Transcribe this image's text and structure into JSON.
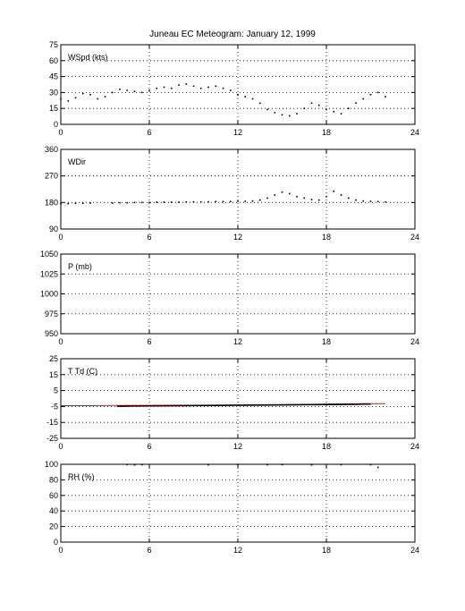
{
  "title": "Juneau EC Meteogram:   January 12, 1999",
  "chart_data": [
    {
      "type": "scatter",
      "label": "WSpd (kts)",
      "xlim": [
        0,
        24
      ],
      "ylim": [
        0,
        75
      ],
      "xticks": [
        0,
        6,
        12,
        18,
        24
      ],
      "yticks": [
        0,
        15,
        30,
        45,
        60,
        75
      ],
      "grid": true,
      "series": [
        {
          "color": "#000000",
          "x": [
            0.0,
            0.5,
            1.0,
            1.5,
            2.0,
            2.5,
            3.0,
            3.5,
            4.0,
            4.5,
            5.0,
            5.5,
            6.0,
            6.5,
            7.0,
            7.5,
            8.0,
            8.5,
            9.0,
            9.5,
            10.0,
            10.5,
            11.0,
            11.5,
            12.0,
            12.5,
            13.0,
            13.5,
            14.0,
            14.5,
            15.0,
            15.5,
            16.0,
            16.5,
            17.0,
            17.5,
            18.0,
            18.5,
            19.0,
            19.5,
            20.0,
            20.5,
            21.0,
            21.5,
            22.0
          ],
          "y": [
            24,
            22,
            25,
            29,
            28,
            24,
            26,
            30,
            33,
            32,
            31,
            30,
            32,
            34,
            35,
            34,
            37,
            38,
            36,
            34,
            35,
            36,
            34,
            32,
            28,
            26,
            24,
            20,
            14,
            11,
            9,
            8,
            10,
            15,
            20,
            18,
            14,
            12,
            10,
            15,
            20,
            24,
            28,
            30,
            26
          ]
        }
      ]
    },
    {
      "type": "scatter",
      "label": "WDir",
      "xlim": [
        0,
        24
      ],
      "ylim": [
        90,
        360
      ],
      "xticks": [
        0,
        6,
        12,
        18,
        24
      ],
      "yticks": [
        90,
        180,
        270,
        360
      ],
      "grid": true,
      "series": [
        {
          "color": "#000000",
          "x": [
            0.0,
            0.5,
            1.0,
            1.5,
            2.0,
            3.5,
            4.0,
            4.5,
            5.0,
            5.5,
            6.0,
            6.5,
            7.0,
            7.5,
            8.0,
            8.5,
            9.0,
            9.5,
            10.0,
            10.5,
            11.0,
            11.5,
            12.0,
            12.5,
            13.0,
            13.5,
            14.0,
            14.5,
            15.0,
            15.5,
            16.0,
            16.5,
            17.0,
            17.5,
            18.0,
            18.5,
            19.0,
            19.5,
            20.0,
            20.5,
            21.0,
            21.5,
            22.0
          ],
          "y": [
            176,
            176,
            177,
            177,
            178,
            178,
            179,
            179,
            180,
            180,
            180,
            181,
            181,
            181,
            181,
            182,
            182,
            182,
            182,
            183,
            183,
            183,
            184,
            184,
            185,
            188,
            195,
            205,
            215,
            210,
            200,
            195,
            190,
            188,
            200,
            218,
            205,
            195,
            188,
            185,
            184,
            183,
            182
          ]
        }
      ]
    },
    {
      "type": "scatter",
      "label": "P (mb)",
      "xlim": [
        0,
        24
      ],
      "ylim": [
        950,
        1050
      ],
      "xticks": [
        0,
        6,
        12,
        18,
        24
      ],
      "yticks": [
        950,
        975,
        1000,
        1025,
        1050
      ],
      "grid": true,
      "series": []
    },
    {
      "type": "line",
      "label": "T Td (C)",
      "xlim": [
        0,
        24
      ],
      "ylim": [
        -25,
        25
      ],
      "xticks": [
        0,
        6,
        12,
        18,
        24
      ],
      "yticks": [
        -25,
        -15,
        -5,
        5,
        15,
        25
      ],
      "grid": true,
      "series": [
        {
          "color": "#ff0000",
          "x": [
            0,
            2,
            3,
            6,
            9,
            12,
            14,
            16,
            18,
            20,
            22
          ],
          "y": [
            -4.5,
            -4.5,
            -4.4,
            -4.3,
            -4.2,
            -4.2,
            -4.0,
            -3.8,
            -3.5,
            -3.3,
            -3.2
          ]
        },
        {
          "color": "#000000",
          "x": [
            3.8,
            4.3,
            4.8,
            16.2,
            16.7,
            17.2,
            20.0,
            20.5,
            21.0
          ],
          "y": [
            -4.8,
            -4.8,
            -4.7,
            -3.9,
            -3.8,
            -3.8,
            -3.6,
            -3.5,
            -3.5
          ]
        }
      ]
    },
    {
      "type": "scatter",
      "label": "RH (%)",
      "xlim": [
        0,
        24
      ],
      "ylim": [
        0,
        100
      ],
      "xticks": [
        0,
        6,
        12,
        18,
        24
      ],
      "yticks": [
        0,
        20,
        40,
        60,
        80,
        100
      ],
      "grid": true,
      "series": [
        {
          "color": "#000000",
          "x": [
            4.5,
            5.0,
            5.5,
            10.0,
            12.0,
            14.0,
            15.0,
            17.0,
            19.0,
            21.0,
            21.5
          ],
          "y": [
            99.5,
            99.2,
            99.5,
            99.3,
            99.6,
            99.4,
            99.6,
            99.2,
            99.5,
            99.4,
            96
          ]
        }
      ]
    }
  ]
}
